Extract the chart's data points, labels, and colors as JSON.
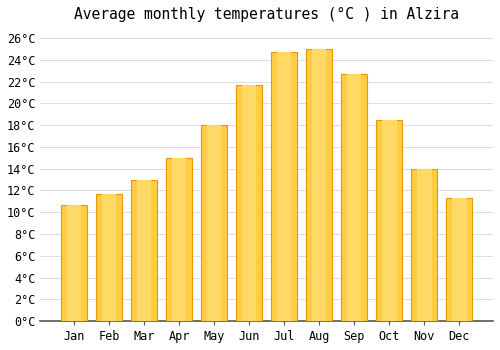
{
  "title": "Average monthly temperatures (°C ) in Alzira",
  "months": [
    "Jan",
    "Feb",
    "Mar",
    "Apr",
    "May",
    "Jun",
    "Jul",
    "Aug",
    "Sep",
    "Oct",
    "Nov",
    "Dec"
  ],
  "temperatures": [
    10.7,
    11.7,
    13.0,
    15.0,
    18.0,
    21.7,
    24.7,
    25.0,
    22.7,
    18.5,
    14.0,
    11.3
  ],
  "bar_color_top": "#FFB300",
  "bar_color_mid": "#FFCC44",
  "bar_color_edge": "#E89800",
  "background_color": "#FFFFFF",
  "grid_color": "#DDDDDD",
  "ylim": [
    0,
    27
  ],
  "yticks": [
    0,
    2,
    4,
    6,
    8,
    10,
    12,
    14,
    16,
    18,
    20,
    22,
    24,
    26
  ],
  "title_fontsize": 10.5,
  "tick_fontsize": 8.5,
  "bar_width": 0.75
}
